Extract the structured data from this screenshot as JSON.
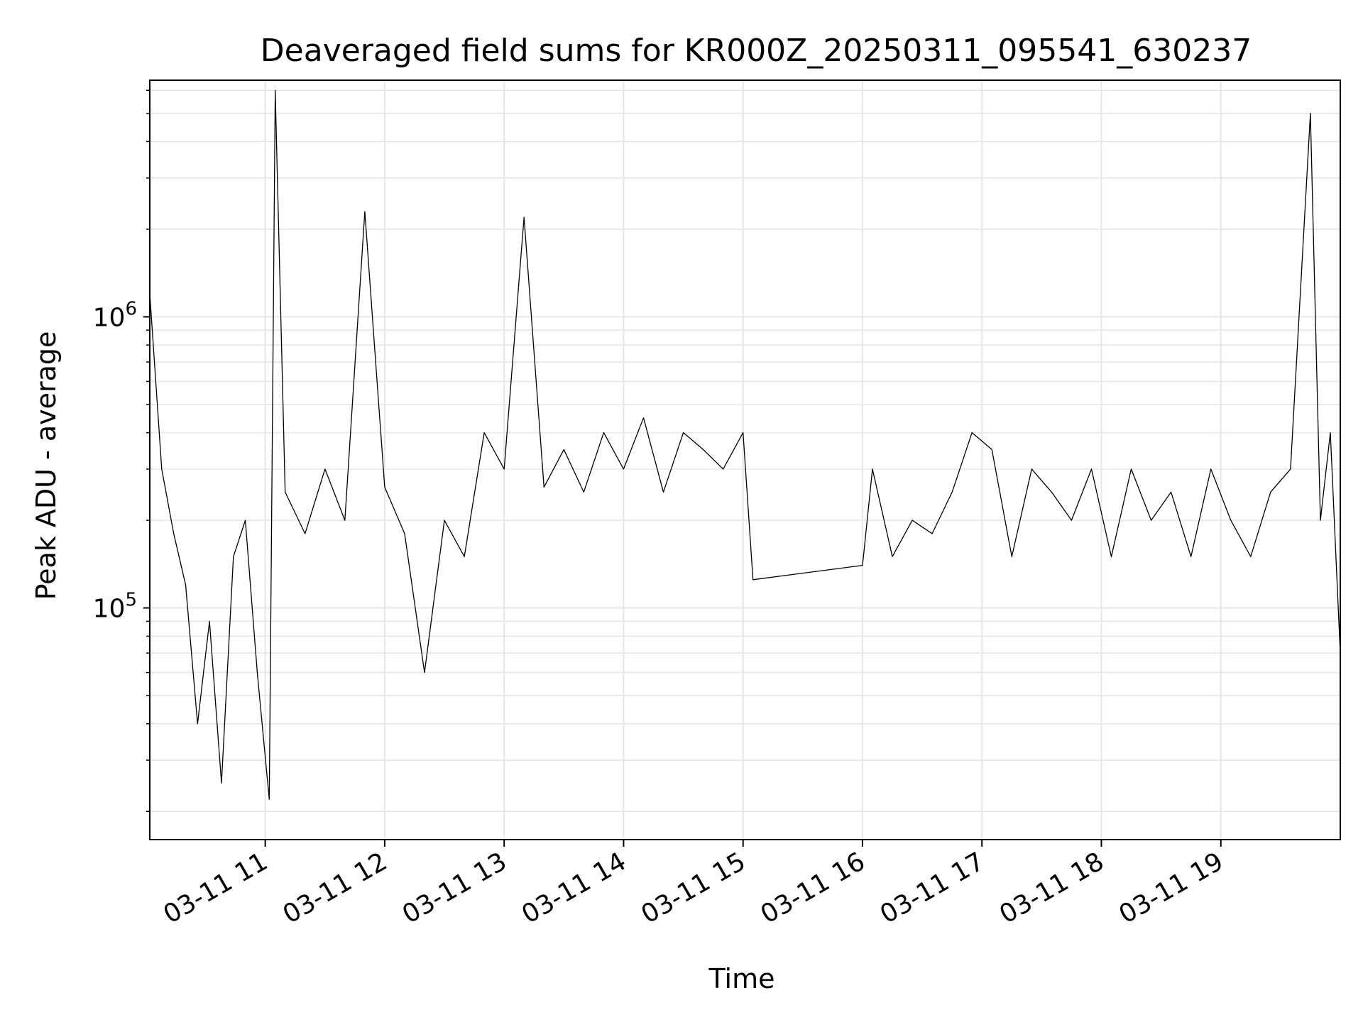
{
  "chart_data": {
    "type": "line",
    "title": "Deaveraged field sums for KR000Z_20250311_095541_630237",
    "xlabel": "Time",
    "ylabel": "Peak ADU - average",
    "yscale": "log",
    "grid": true,
    "legend": "none",
    "line_color": "#000000",
    "grid_color": "#e6e6e6",
    "xlim": [
      "2025-03-11 10:02",
      "2025-03-11 20:00"
    ],
    "ylim": [
      16000,
      6500000
    ],
    "x_ticks": [
      {
        "x": "2025-03-11 11:00",
        "label": "03-11 11"
      },
      {
        "x": "2025-03-11 12:00",
        "label": "03-11 12"
      },
      {
        "x": "2025-03-11 13:00",
        "label": "03-11 13"
      },
      {
        "x": "2025-03-11 14:00",
        "label": "03-11 14"
      },
      {
        "x": "2025-03-11 15:00",
        "label": "03-11 15"
      },
      {
        "x": "2025-03-11 16:00",
        "label": "03-11 16"
      },
      {
        "x": "2025-03-11 17:00",
        "label": "03-11 17"
      },
      {
        "x": "2025-03-11 18:00",
        "label": "03-11 18"
      },
      {
        "x": "2025-03-11 19:00",
        "label": "03-11 19"
      }
    ],
    "y_ticks": [
      {
        "value": 100000,
        "base": "10",
        "exp": "5"
      },
      {
        "value": 1000000,
        "base": "10",
        "exp": "6"
      }
    ],
    "series": [
      {
        "points": [
          [
            "2025-03-11 10:02",
            1200000
          ],
          [
            "2025-03-11 10:08",
            300000
          ],
          [
            "2025-03-11 10:14",
            180000
          ],
          [
            "2025-03-11 10:20",
            120000
          ],
          [
            "2025-03-11 10:26",
            40000
          ],
          [
            "2025-03-11 10:32",
            90000
          ],
          [
            "2025-03-11 10:38",
            25000
          ],
          [
            "2025-03-11 10:44",
            150000
          ],
          [
            "2025-03-11 10:50",
            200000
          ],
          [
            "2025-03-11 10:56",
            60000
          ],
          [
            "2025-03-11 11:02",
            22000
          ],
          [
            "2025-03-11 11:05",
            6000000
          ],
          [
            "2025-03-11 11:10",
            250000
          ],
          [
            "2025-03-11 11:20",
            180000
          ],
          [
            "2025-03-11 11:30",
            300000
          ],
          [
            "2025-03-11 11:40",
            200000
          ],
          [
            "2025-03-11 11:50",
            2300000
          ],
          [
            "2025-03-11 12:00",
            260000
          ],
          [
            "2025-03-11 12:10",
            180000
          ],
          [
            "2025-03-11 12:20",
            60000
          ],
          [
            "2025-03-11 12:30",
            200000
          ],
          [
            "2025-03-11 12:40",
            150000
          ],
          [
            "2025-03-11 12:50",
            400000
          ],
          [
            "2025-03-11 13:00",
            300000
          ],
          [
            "2025-03-11 13:10",
            2200000
          ],
          [
            "2025-03-11 13:20",
            260000
          ],
          [
            "2025-03-11 13:30",
            350000
          ],
          [
            "2025-03-11 13:40",
            250000
          ],
          [
            "2025-03-11 13:50",
            400000
          ],
          [
            "2025-03-11 14:00",
            300000
          ],
          [
            "2025-03-11 14:10",
            450000
          ],
          [
            "2025-03-11 14:20",
            250000
          ],
          [
            "2025-03-11 14:30",
            400000
          ],
          [
            "2025-03-11 14:40",
            350000
          ],
          [
            "2025-03-11 14:50",
            300000
          ],
          [
            "2025-03-11 15:00",
            400000
          ],
          [
            "2025-03-11 15:05",
            125000
          ],
          [
            "2025-03-11 16:00",
            140000
          ],
          [
            "2025-03-11 16:05",
            300000
          ],
          [
            "2025-03-11 16:15",
            150000
          ],
          [
            "2025-03-11 16:25",
            200000
          ],
          [
            "2025-03-11 16:35",
            180000
          ],
          [
            "2025-03-11 16:45",
            250000
          ],
          [
            "2025-03-11 16:55",
            400000
          ],
          [
            "2025-03-11 17:05",
            350000
          ],
          [
            "2025-03-11 17:15",
            150000
          ],
          [
            "2025-03-11 17:25",
            300000
          ],
          [
            "2025-03-11 17:35",
            250000
          ],
          [
            "2025-03-11 17:45",
            200000
          ],
          [
            "2025-03-11 17:55",
            300000
          ],
          [
            "2025-03-11 18:05",
            150000
          ],
          [
            "2025-03-11 18:15",
            300000
          ],
          [
            "2025-03-11 18:25",
            200000
          ],
          [
            "2025-03-11 18:35",
            250000
          ],
          [
            "2025-03-11 18:45",
            150000
          ],
          [
            "2025-03-11 18:55",
            300000
          ],
          [
            "2025-03-11 19:05",
            200000
          ],
          [
            "2025-03-11 19:15",
            150000
          ],
          [
            "2025-03-11 19:25",
            250000
          ],
          [
            "2025-03-11 19:35",
            300000
          ],
          [
            "2025-03-11 19:45",
            5000000
          ],
          [
            "2025-03-11 19:50",
            200000
          ],
          [
            "2025-03-11 19:55",
            400000
          ],
          [
            "2025-03-11 20:00",
            70000
          ]
        ]
      }
    ]
  }
}
